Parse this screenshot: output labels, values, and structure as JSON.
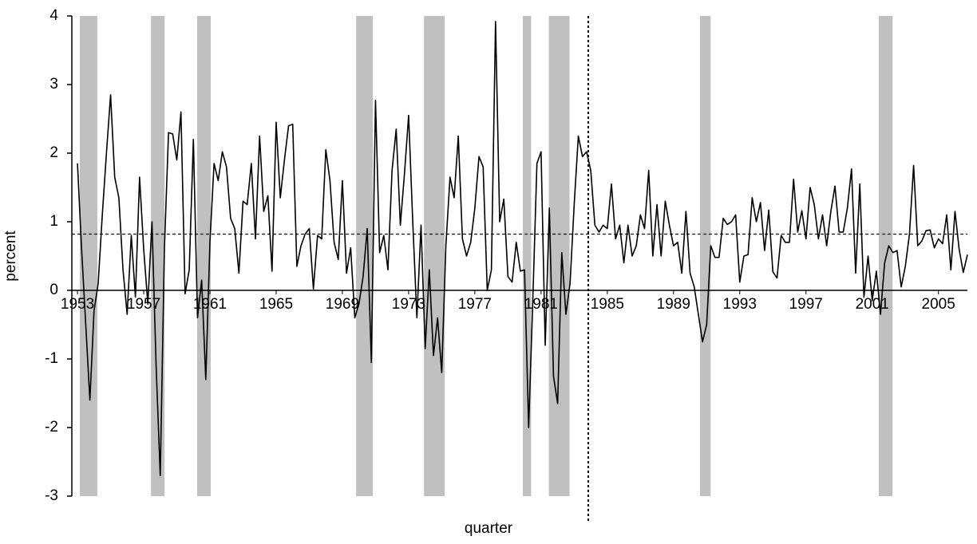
{
  "chart_data": {
    "type": "line",
    "x_label": "quarter",
    "y_label": "percent",
    "xlim": [
      1952.66,
      2006.75
    ],
    "ylim": [
      -3,
      4
    ],
    "xticks": [
      1953,
      1957,
      1961,
      1965,
      1969,
      1973,
      1977,
      1981,
      1985,
      1989,
      1993,
      1997,
      2001,
      2005
    ],
    "yticks": [
      -3,
      -2,
      -1,
      0,
      1,
      2,
      3,
      4
    ],
    "mean": 0.82,
    "breakpoint": 1983.85,
    "recessions": [
      [
        1953.14,
        1954.2
      ],
      [
        1957.44,
        1958.26
      ],
      [
        1960.23,
        1961.05
      ],
      [
        1969.83,
        1970.84
      ],
      [
        1973.93,
        1975.18
      ],
      [
        1979.9,
        1980.4
      ],
      [
        1981.47,
        1982.72
      ],
      [
        1990.6,
        1991.24
      ],
      [
        2001.4,
        2002.23
      ]
    ],
    "recession_color": "#c0c0c0",
    "x": [
      1953,
      1953.25,
      1953.5,
      1953.75,
      1954,
      1954.25,
      1954.5,
      1954.75,
      1955,
      1955.25,
      1955.5,
      1955.75,
      1956,
      1956.25,
      1956.5,
      1956.75,
      1957,
      1957.25,
      1957.5,
      1957.75,
      1958,
      1958.25,
      1958.5,
      1958.75,
      1959,
      1959.25,
      1959.5,
      1959.75,
      1960,
      1960.25,
      1960.5,
      1960.75,
      1961,
      1961.25,
      1961.5,
      1961.75,
      1962,
      1962.25,
      1962.5,
      1962.75,
      1963,
      1963.25,
      1963.5,
      1963.75,
      1964,
      1964.25,
      1964.5,
      1964.75,
      1965,
      1965.25,
      1965.5,
      1965.75,
      1966,
      1966.25,
      1966.5,
      1966.75,
      1967,
      1967.25,
      1967.5,
      1967.75,
      1968,
      1968.25,
      1968.5,
      1968.75,
      1969,
      1969.25,
      1969.5,
      1969.75,
      1970,
      1970.25,
      1970.5,
      1970.75,
      1971,
      1971.25,
      1971.5,
      1971.75,
      1972,
      1972.25,
      1972.5,
      1972.75,
      1973,
      1973.25,
      1973.5,
      1973.75,
      1974,
      1974.25,
      1974.5,
      1974.75,
      1975,
      1975.25,
      1975.5,
      1975.75,
      1976,
      1976.25,
      1976.5,
      1976.75,
      1977,
      1977.25,
      1977.5,
      1977.75,
      1978,
      1978.25,
      1978.5,
      1978.75,
      1979,
      1979.25,
      1979.5,
      1979.75,
      1980,
      1980.25,
      1980.5,
      1980.75,
      1981,
      1981.25,
      1981.5,
      1981.75,
      1982,
      1982.25,
      1982.5,
      1982.75,
      1983,
      1983.25,
      1983.5,
      1983.75,
      1984,
      1984.25,
      1984.5,
      1984.75,
      1985,
      1985.25,
      1985.5,
      1985.75,
      1986,
      1986.25,
      1986.5,
      1986.75,
      1987,
      1987.25,
      1987.5,
      1987.75,
      1988,
      1988.25,
      1988.5,
      1988.75,
      1989,
      1989.25,
      1989.5,
      1989.75,
      1990,
      1990.25,
      1990.5,
      1990.75,
      1991,
      1991.25,
      1991.5,
      1991.75,
      1992,
      1992.25,
      1992.5,
      1992.75,
      1993,
      1993.25,
      1993.5,
      1993.75,
      1994,
      1994.25,
      1994.5,
      1994.75,
      1995,
      1995.25,
      1995.5,
      1995.75,
      1996,
      1996.25,
      1996.5,
      1996.75,
      1997,
      1997.25,
      1997.5,
      1997.75,
      1998,
      1998.25,
      1998.5,
      1998.75,
      1999,
      1999.25,
      1999.5,
      1999.75,
      2000,
      2000.25,
      2000.5,
      2000.75,
      2001,
      2001.25,
      2001.5,
      2001.75,
      2002,
      2002.25,
      2002.5,
      2002.75,
      2003,
      2003.25,
      2003.5,
      2003.75,
      2004,
      2004.25,
      2004.5,
      2004.75,
      2005,
      2005.25,
      2005.5,
      2005.75,
      2006,
      2006.25,
      2006.5,
      2006.75
    ],
    "series": [
      {
        "color": "#000000",
        "values": [
          1.85,
          0.6,
          -0.5,
          -1.6,
          -0.3,
          0.1,
          1.1,
          2.0,
          2.85,
          1.65,
          1.35,
          0.3,
          -0.35,
          0.8,
          -0.1,
          1.65,
          0.6,
          -0.2,
          1.0,
          -1.1,
          -2.7,
          0.6,
          2.3,
          2.28,
          1.9,
          2.6,
          -0.05,
          0.3,
          2.2,
          -0.4,
          0.15,
          -1.3,
          0.7,
          1.85,
          1.6,
          2.02,
          1.8,
          1.05,
          0.9,
          0.25,
          1.3,
          1.25,
          1.85,
          0.75,
          2.25,
          1.15,
          1.38,
          0.28,
          2.45,
          1.35,
          1.9,
          2.4,
          2.42,
          0.35,
          0.65,
          0.82,
          0.9,
          0.02,
          0.8,
          0.75,
          2.05,
          1.6,
          0.7,
          0.45,
          1.6,
          0.25,
          0.62,
          -0.4,
          -0.2,
          0.2,
          0.9,
          -1.05,
          2.77,
          0.55,
          0.8,
          0.3,
          1.75,
          2.35,
          0.95,
          1.7,
          2.55,
          1.0,
          -0.4,
          0.95,
          -0.85,
          0.3,
          -0.95,
          -0.4,
          -1.2,
          0.65,
          1.65,
          1.35,
          2.25,
          0.75,
          0.5,
          0.7,
          1.2,
          1.95,
          1.8,
          0.0,
          0.3,
          3.92,
          1.0,
          1.33,
          0.2,
          0.12,
          0.7,
          0.28,
          0.3,
          -2.0,
          -0.15,
          1.85,
          2.02,
          -0.8,
          1.2,
          -1.25,
          -1.65,
          0.55,
          -0.35,
          0.1,
          1.25,
          2.25,
          1.95,
          2.02,
          1.75,
          0.95,
          0.85,
          0.95,
          0.9,
          1.55,
          0.75,
          0.95,
          0.4,
          0.95,
          0.5,
          0.65,
          1.1,
          0.9,
          1.75,
          0.5,
          1.25,
          0.5,
          1.3,
          0.95,
          0.65,
          0.7,
          0.25,
          1.15,
          0.25,
          0.05,
          -0.35,
          -0.75,
          -0.5,
          0.65,
          0.48,
          0.48,
          1.05,
          0.96,
          1.0,
          1.1,
          0.12,
          0.5,
          0.52,
          1.35,
          1.0,
          1.28,
          0.58,
          1.17,
          0.27,
          0.18,
          0.8,
          0.7,
          0.7,
          1.62,
          0.85,
          1.16,
          0.75,
          1.5,
          1.25,
          0.75,
          1.1,
          0.65,
          1.15,
          1.52,
          0.85,
          0.85,
          1.2,
          1.77,
          0.25,
          1.55,
          -0.1,
          0.5,
          -0.15,
          0.28,
          -0.35,
          0.4,
          0.65,
          0.55,
          0.58,
          0.05,
          0.35,
          0.82,
          1.82,
          0.65,
          0.72,
          0.87,
          0.88,
          0.62,
          0.75,
          0.68,
          1.1,
          0.3,
          1.15,
          0.6,
          0.26,
          0.52
        ]
      }
    ]
  }
}
